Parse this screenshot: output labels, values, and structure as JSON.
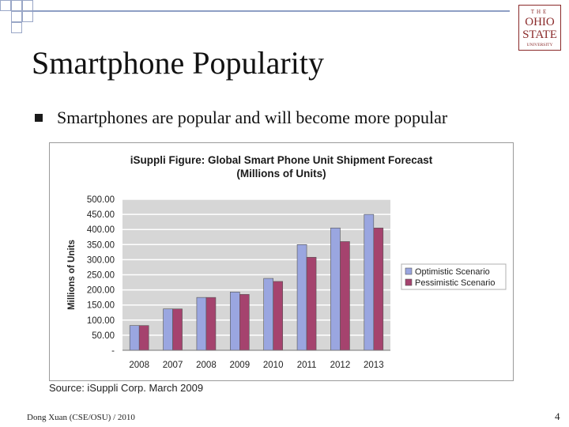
{
  "slide": {
    "title": "Smartphone Popularity",
    "bullet": "Smartphones are popular and will become more popular",
    "footer": "Dong Xuan (CSE/OSU) / 2010",
    "page_number": "4",
    "source": "Source: iSuppli Corp. March 2009",
    "logo_lines": [
      "THE",
      "OHIO",
      "STATE",
      "UNIVERSITY"
    ]
  },
  "chart_data": {
    "type": "bar",
    "title": "iSuppli Figure: Global Smart Phone Unit Shipment Forecast",
    "subtitle": "(Millions of Units)",
    "ylabel": "Millions of Units",
    "xlabel": "",
    "categories": [
      "2008",
      "2007",
      "2008",
      "2009",
      "2010",
      "2011",
      "2012",
      "2013"
    ],
    "yticks": [
      "-",
      "50.00",
      "100.00",
      "150.00",
      "200.00",
      "250.00",
      "300.00",
      "350.00",
      "400.00",
      "450.00",
      "500.00"
    ],
    "ylim": [
      0,
      500
    ],
    "grid": true,
    "legend_position": "right",
    "series": [
      {
        "name": "Optimistic Scenario",
        "color": "#9aa6e0",
        "values": [
          82,
          137,
          175,
          193,
          238,
          350,
          405,
          450
        ]
      },
      {
        "name": "Pessimistic Scenario",
        "color": "#a5436e",
        "values": [
          82,
          137,
          175,
          185,
          228,
          308,
          360,
          405
        ]
      }
    ]
  }
}
